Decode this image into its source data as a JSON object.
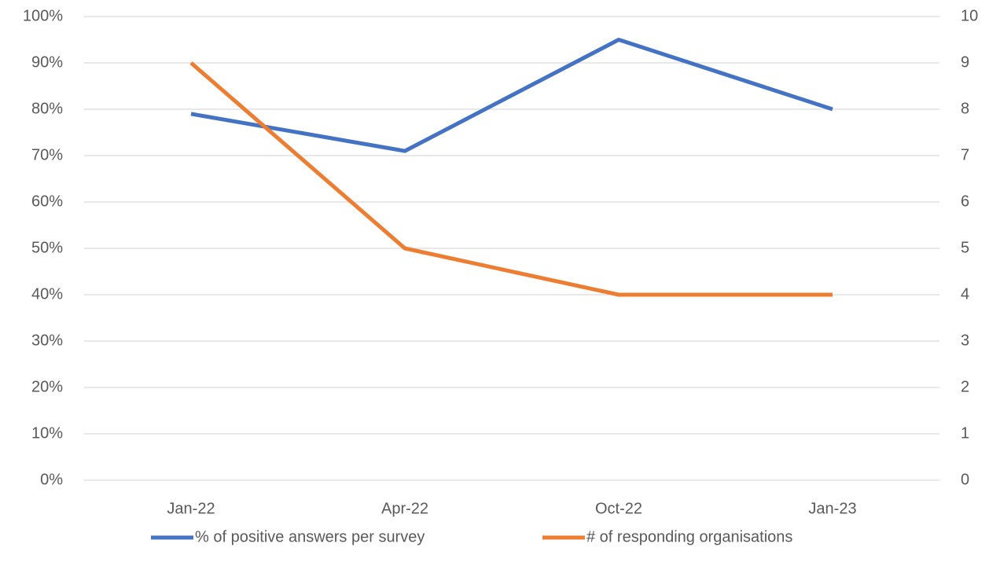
{
  "chart_data": {
    "type": "line",
    "categories": [
      "Jan-22",
      "Apr-22",
      "Oct-22",
      "Jan-23"
    ],
    "series": [
      {
        "name": "% of positive answers per survey",
        "color": "#4472c4",
        "values": [
          79,
          71,
          95,
          80
        ]
      },
      {
        "name": "# of responding organisations",
        "color": "#ed7d31",
        "values": [
          9,
          5,
          4,
          4
        ],
        "axis": "y2"
      }
    ],
    "ylim": [
      0,
      100
    ],
    "yticks": [
      {
        "value": 0,
        "label": "0%"
      },
      {
        "value": 10,
        "label": "10%"
      },
      {
        "value": 20,
        "label": "20%"
      },
      {
        "value": 30,
        "label": "30%"
      },
      {
        "value": 40,
        "label": "40%"
      },
      {
        "value": 50,
        "label": "50%"
      },
      {
        "value": 60,
        "label": "60%"
      },
      {
        "value": 70,
        "label": "70%"
      },
      {
        "value": 80,
        "label": "80%"
      },
      {
        "value": 90,
        "label": "90%"
      },
      {
        "value": 100,
        "label": "100%"
      }
    ],
    "y2lim": [
      0,
      10
    ],
    "y2ticks": [
      0,
      1,
      2,
      3,
      4,
      5,
      6,
      7,
      8,
      9,
      10
    ],
    "grid": true,
    "legend": "bottom"
  }
}
